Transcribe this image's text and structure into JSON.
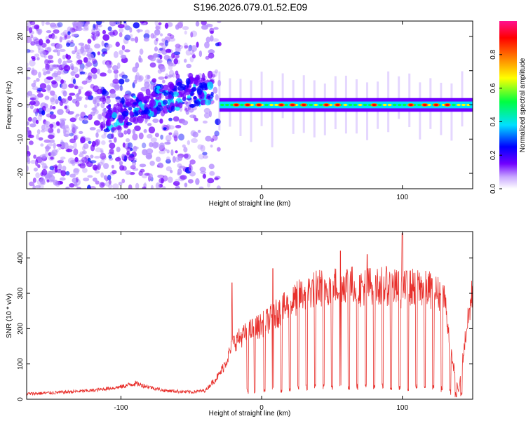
{
  "title": "S196.2026.079.01.52.E09",
  "chart_data": [
    {
      "type": "heatmap",
      "description_panel": "top",
      "xlabel": "Height of straight line (km)",
      "ylabel": "Frequency (Hz)",
      "xlim": [
        -167,
        150
      ],
      "ylim": [
        -24.5,
        24.5
      ],
      "xticks": [
        -100,
        0,
        100
      ],
      "xtick_labels": [
        "-100",
        "0",
        "100"
      ],
      "yticks": [
        -20,
        -10,
        0,
        10,
        20
      ],
      "ytick_labels": [
        "-20",
        "-10",
        "0",
        "10",
        "20"
      ],
      "colorbar": {
        "label": "Normalized spectral amplitude",
        "range": [
          0,
          1
        ],
        "ticks": [
          0.0,
          0.2,
          0.4,
          0.6,
          0.8
        ],
        "tick_labels": [
          "0.0",
          "0.2",
          "0.4",
          "0.6",
          "0.8"
        ],
        "colors": [
          "#ffffff",
          "#b48cff",
          "#7000ff",
          "#0000ff",
          "#00e0ff",
          "#00ff40",
          "#ffff00",
          "#ff8000",
          "#ff0000",
          "#ff1090"
        ]
      },
      "features": {
        "noise_region_x": [
          -167,
          -30
        ],
        "drift_trend": {
          "x": [
            -110,
            -90,
            -70,
            -50,
            -35
          ],
          "freq": [
            -4,
            -1,
            2,
            3.5,
            5
          ]
        },
        "tone_region_x": [
          -30,
          150
        ],
        "tone_frequency": 0,
        "bright_bursts_x": [
          -18,
          -10,
          -2,
          14,
          22,
          30,
          46,
          54,
          80,
          106,
          116,
          124,
          132
        ]
      }
    },
    {
      "type": "line",
      "description_panel": "bottom",
      "xlabel": "Height of straight line (km)",
      "ylabel": "SNR (10 * v/v)",
      "xlim": [
        -167,
        150
      ],
      "ylim": [
        0,
        475
      ],
      "xticks": [
        -100,
        0,
        100
      ],
      "xtick_labels": [
        "-100",
        "0",
        "100"
      ],
      "yticks": [
        0,
        100,
        200,
        300,
        400
      ],
      "ytick_labels": [
        "0",
        "100",
        "200",
        "300",
        "400"
      ],
      "series": [
        {
          "name": "SNR",
          "color": "#e8302c",
          "envelope": {
            "x": [
              -167,
              -140,
              -120,
              -100,
              -90,
              -80,
              -70,
              -50,
              -40,
              -30,
              -25,
              -20,
              -10,
              0,
              10,
              20,
              30,
              40,
              50,
              60,
              70,
              80,
              90,
              100,
              110,
              120,
              130,
              135,
              140,
              145,
              150
            ],
            "y": [
              15,
              20,
              25,
              35,
              45,
              35,
              25,
              20,
              25,
              70,
              110,
              160,
              190,
              210,
              240,
              270,
              300,
              315,
              320,
              330,
              315,
              325,
              320,
              310,
              320,
              310,
              290,
              120,
              20,
              180,
              310
            ]
          },
          "spikes": {
            "x": [
              -21,
              8,
              56,
              75,
              100
            ],
            "y": [
              330,
              370,
              420,
              410,
              470
            ]
          },
          "dropouts_x": [
            -10,
            -5,
            2,
            8,
            14,
            20,
            26,
            32,
            38,
            44,
            50,
            56,
            62,
            68,
            74,
            80,
            86,
            92,
            98,
            104,
            110,
            116,
            122,
            128,
            134,
            138,
            142
          ]
        }
      ]
    }
  ]
}
